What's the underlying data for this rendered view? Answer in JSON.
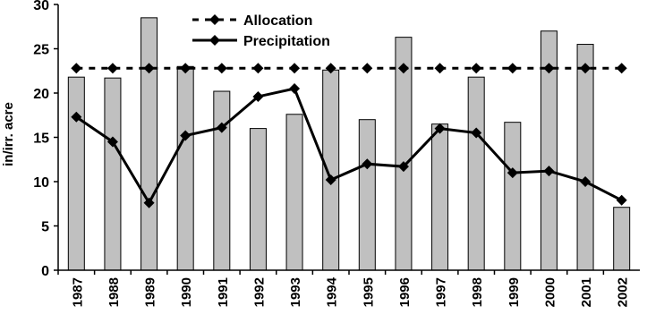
{
  "chart_data": {
    "type": "bar",
    "y_label": "in/irr. acre",
    "categories": [
      "1987",
      "1988",
      "1989",
      "1990",
      "1991",
      "1992",
      "1993",
      "1994",
      "1995",
      "1996",
      "1997",
      "1998",
      "1999",
      "2000",
      "2001",
      "2002"
    ],
    "ylim": [
      0,
      30
    ],
    "yticks": [
      0,
      5,
      10,
      15,
      20,
      25,
      30
    ],
    "legend_position": "top-left",
    "series": [
      {
        "type": "bar",
        "color": "#c0c0c0",
        "values": [
          21.8,
          21.7,
          28.5,
          23.0,
          20.2,
          16.0,
          17.6,
          22.6,
          17.0,
          26.3,
          16.5,
          21.8,
          16.7,
          27.0,
          25.5,
          7.1
        ]
      },
      {
        "type": "line",
        "name": "Allocation",
        "color": "#000000",
        "dashed": true,
        "values": [
          22.8,
          22.8,
          22.8,
          22.8,
          22.8,
          22.8,
          22.8,
          22.8,
          22.8,
          22.8,
          22.8,
          22.8,
          22.8,
          22.8,
          22.8,
          22.8
        ]
      },
      {
        "type": "line",
        "name": "Precipitation",
        "color": "#000000",
        "dashed": false,
        "values": [
          17.3,
          14.5,
          7.6,
          15.2,
          16.1,
          19.6,
          20.5,
          10.2,
          12.0,
          11.7,
          16.0,
          15.5,
          11.0,
          11.2,
          10.0,
          7.9
        ]
      }
    ]
  }
}
